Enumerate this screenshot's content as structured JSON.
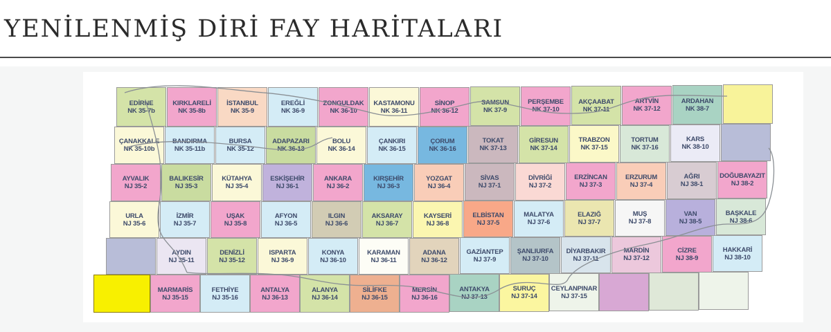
{
  "title": "YENİLENMİŞ DİRİ FAY HARİTALARI",
  "map": {
    "rows": [
      [
        {
          "name": "EDİRNE",
          "code": "NK 35-7b",
          "color": "#d4e3a8"
        },
        {
          "name": "KIRKLARELİ",
          "code": "NK 35-8b",
          "color": "#f2a6cc"
        },
        {
          "name": "İSTANBUL",
          "code": "NK 35-9",
          "color": "#f9d9c4"
        },
        {
          "name": "EREĞLİ",
          "code": "NK 36-9",
          "color": "#d4ecf6"
        },
        {
          "name": "ZONGULDAK",
          "code": "NK 36-10",
          "color": "#f2a6cc"
        },
        {
          "name": "KASTAMONU",
          "code": "NK 36-11",
          "color": "#fbf8d8"
        },
        {
          "name": "SİNOP",
          "code": "NK 36-12",
          "color": "#f2a6cc"
        },
        {
          "name": "SAMSUN",
          "code": "NK 37-9",
          "color": "#d4e3a8"
        },
        {
          "name": "PERŞEMBE",
          "code": "NK 37-10",
          "color": "#f2a6cc"
        },
        {
          "name": "AKÇAABAT",
          "code": "NK 37-11",
          "color": "#d4e3a8"
        },
        {
          "name": "ARTVİN",
          "code": "NK 37-12",
          "color": "#f2a6cc"
        },
        {
          "name": "ARDAHAN",
          "code": "NK 38-7",
          "color": "#a9d3c3"
        },
        {
          "name": "",
          "code": "",
          "color": "#f8f39a"
        }
      ],
      [
        {
          "name": "ÇANAKKALE",
          "code": "NK 35-10b",
          "color": "#fbf8d8"
        },
        {
          "name": "BANDIRMA",
          "code": "NK 35-11b",
          "color": "#d4ecf6"
        },
        {
          "name": "BURSA",
          "code": "NK 35-12",
          "color": "#d4ecf6"
        },
        {
          "name": "ADAPAZARI",
          "code": "NK 36-13",
          "color": "#c9dca0"
        },
        {
          "name": "BOLU",
          "code": "NK 36-14",
          "color": "#fbf8d8"
        },
        {
          "name": "ÇANKIRI",
          "code": "NK 36-15",
          "color": "#d4ecf6"
        },
        {
          "name": "ÇORUM",
          "code": "NK 36-16",
          "color": "#77b8e0"
        },
        {
          "name": "TOKAT",
          "code": "NK 37-13",
          "color": "#cbb8be"
        },
        {
          "name": "GİRESUN",
          "code": "NK 37-14",
          "color": "#d4e3a8"
        },
        {
          "name": "TRABZON",
          "code": "NK 37-15",
          "color": "#fbf8c8"
        },
        {
          "name": "TORTUM",
          "code": "NK 37-16",
          "color": "#d8e8d8"
        },
        {
          "name": "KARS",
          "code": "NK 38-10",
          "color": "#ebebf6"
        },
        {
          "name": "",
          "code": "",
          "color": "#b8bdd8"
        }
      ],
      [
        {
          "name": "AYVALIK",
          "code": "NJ 35-2",
          "color": "#f2a6cc"
        },
        {
          "name": "BALIKESİR",
          "code": "NJ 35-3",
          "color": "#c9dca0"
        },
        {
          "name": "KÜTAHYA",
          "code": "NJ 35-4",
          "color": "#fbf8d8"
        },
        {
          "name": "ESKİŞEHİR",
          "code": "NJ 36-1",
          "color": "#c0b2dc"
        },
        {
          "name": "ANKARA",
          "code": "NJ 36-2",
          "color": "#f2a6cc"
        },
        {
          "name": "KIRŞEHİR",
          "code": "NJ 36-3",
          "color": "#77b8e0"
        },
        {
          "name": "YOZGAT",
          "code": "NJ 36-4",
          "color": "#f9cdb8"
        },
        {
          "name": "SİVAS",
          "code": "NJ 37-1",
          "color": "#cbb8be"
        },
        {
          "name": "DİVRİĞİ",
          "code": "NJ 37-2",
          "color": "#fad9d4"
        },
        {
          "name": "ERZİNCAN",
          "code": "NJ 37-3",
          "color": "#f2a6cc"
        },
        {
          "name": "ERZURUM",
          "code": "NJ 37-4",
          "color": "#f9cdb8"
        },
        {
          "name": "AĞRI",
          "code": "NJ 38-1",
          "color": "#d8ccd2"
        },
        {
          "name": "DOĞUBAYAZIT",
          "code": "NJ 38-2",
          "color": "#f2a6cc"
        }
      ],
      [
        {
          "name": "URLA",
          "code": "NJ 35-6",
          "color": "#fbf8d8"
        },
        {
          "name": "İZMİR",
          "code": "NJ 35-7",
          "color": "#d4ecf6"
        },
        {
          "name": "UŞAK",
          "code": "NJ 35-8",
          "color": "#f2a6cc"
        },
        {
          "name": "AFYON",
          "code": "NJ 36-5",
          "color": "#d4ecf6"
        },
        {
          "name": "ILGIN",
          "code": "NJ 36-6",
          "color": "#d2ccb4"
        },
        {
          "name": "AKSARAY",
          "code": "NJ 36-7",
          "color": "#d4e3a8"
        },
        {
          "name": "KAYSERİ",
          "code": "NJ 36-8",
          "color": "#fbf6b0"
        },
        {
          "name": "ELBİSTAN",
          "code": "NJ 37-5",
          "color": "#f8a888"
        },
        {
          "name": "MALATYA",
          "code": "NJ 37-6",
          "color": "#d4ecf6"
        },
        {
          "name": "ELAZIĞ",
          "code": "NJ 37-7",
          "color": "#ebe6b0"
        },
        {
          "name": "MUŞ",
          "code": "NJ 37-8",
          "color": "#f6f6f6"
        },
        {
          "name": "VAN",
          "code": "NJ 38-5",
          "color": "#b8b0dc"
        },
        {
          "name": "BAŞKALE",
          "code": "NJ 38-6",
          "color": "#d8e8d8"
        }
      ],
      [
        {
          "name": "",
          "code": "",
          "color": "#b8bdd8"
        },
        {
          "name": "AYDIN",
          "code": "NJ 35-11",
          "color": "#ebe6f2"
        },
        {
          "name": "DENİZLİ",
          "code": "NJ 35-12",
          "color": "#d4e3a8"
        },
        {
          "name": "ISPARTA",
          "code": "NJ 36-9",
          "color": "#fbf8d8"
        },
        {
          "name": "KONYA",
          "code": "NJ 36-10",
          "color": "#d4ecf6"
        },
        {
          "name": "KARAMAN",
          "code": "NJ 36-11",
          "color": "#fdfdf6"
        },
        {
          "name": "ADANA",
          "code": "NJ 36-12",
          "color": "#e2d4bc"
        },
        {
          "name": "GAZİANTEP",
          "code": "NJ 37-9",
          "color": "#d4ecf6"
        },
        {
          "name": "ŞANLIURFA",
          "code": "NJ 37-10",
          "color": "#b4c4c8"
        },
        {
          "name": "DİYARBAKIR",
          "code": "NJ 37-11",
          "color": "#d8e4ec"
        },
        {
          "name": "MARDİN",
          "code": "NJ 37-12",
          "color": "#ecc8dc"
        },
        {
          "name": "CİZRE",
          "code": "NJ 38-9",
          "color": "#f2a6cc"
        },
        {
          "name": "HAKKARİ",
          "code": "NJ 38-10",
          "color": "#d4ecf6"
        }
      ],
      [
        {
          "name": "",
          "code": "",
          "color": "#f8f000"
        },
        {
          "name": "MARMARİS",
          "code": "NJ 35-15",
          "color": "#f2a6cc"
        },
        {
          "name": "FETHİYE",
          "code": "NJ 35-16",
          "color": "#d4ecf6"
        },
        {
          "name": "ANTALYA",
          "code": "NJ 36-13",
          "color": "#f2a6cc"
        },
        {
          "name": "ALANYA",
          "code": "NJ 36-14",
          "color": "#d4e3a8"
        },
        {
          "name": "SİLİFKE",
          "code": "NJ 36-15",
          "color": "#eeb090"
        },
        {
          "name": "MERSİN",
          "code": "NJ 36-16",
          "color": "#f2a6cc"
        },
        {
          "name": "ANTAKYA",
          "code": "NJ 37-13",
          "color": "#a9d3c3"
        },
        {
          "name": "SURUÇ",
          "code": "NJ 37-14",
          "color": "#fbf6a0"
        },
        {
          "name": "CEYLANPINAR",
          "code": "NJ 37-15",
          "color": "#eef4ea"
        },
        {
          "name": "",
          "code": "",
          "color": "#d8a8d4"
        },
        {
          "name": "",
          "code": "",
          "color": "#dfe8d8"
        },
        {
          "name": "",
          "code": "",
          "color": "#eef4ea"
        }
      ]
    ]
  }
}
